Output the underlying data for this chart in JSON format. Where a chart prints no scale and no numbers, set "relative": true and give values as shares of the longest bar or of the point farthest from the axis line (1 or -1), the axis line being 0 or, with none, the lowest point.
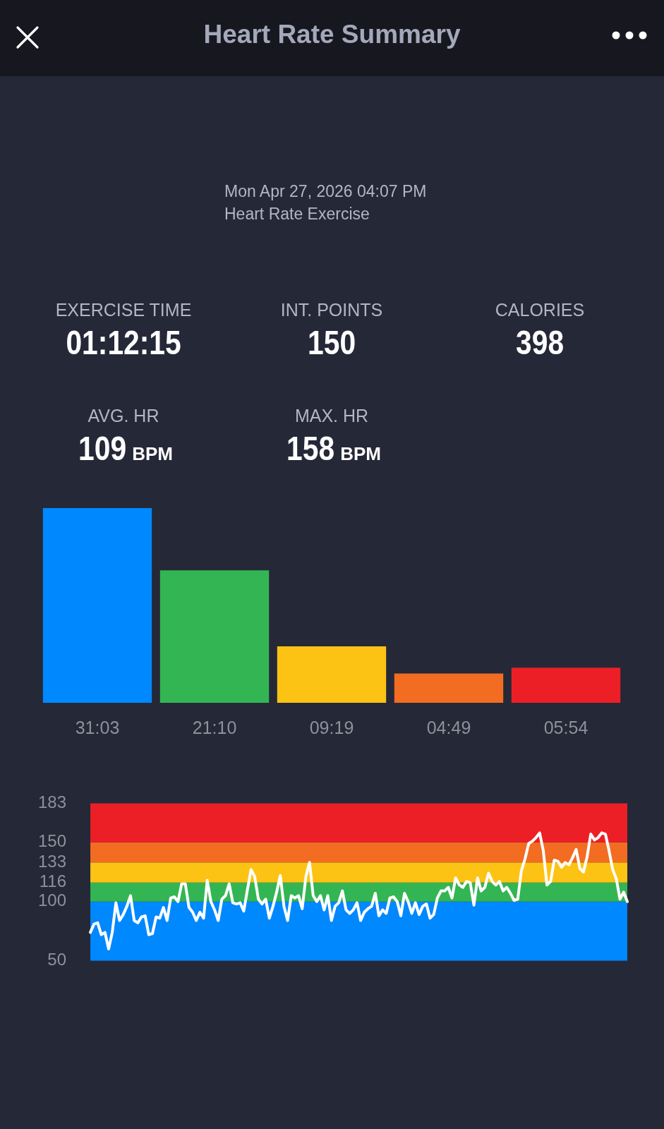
{
  "chart_data": [
    {
      "type": "other",
      "title": "Heart Rate Summary",
      "subtitle": "Mon Apr 27, 2026 04:07 PM",
      "annotations": [
        "Heart Rate Exercise",
        "EXERCISE TIME",
        "01:12:15",
        "INT. POINTS",
        "150",
        "CALORIES",
        "398",
        "AVG. HR",
        "109 BPM",
        "MAX. HR",
        "158 BPM"
      ]
    },
    {
      "type": "bar",
      "relative": true,
      "categories": [
        "31:03",
        "21:10",
        "09:19",
        "04:49",
        "05:54"
      ],
      "values": [
        1,
        0.68,
        0.29,
        0.15,
        0.18
      ],
      "colors": [
        "#0088fe",
        "#33b553",
        "#fdc314",
        "#f26c22",
        "#ed1f26"
      ]
    },
    {
      "type": "line",
      "ylim": [
        50,
        183
      ],
      "yticks": [
        50,
        100,
        116,
        133,
        150,
        183
      ],
      "tick_labels": "y",
      "marker": "none",
      "categories": [
        null,
        null,
        null,
        null,
        null,
        null,
        null,
        null,
        null,
        null,
        null,
        null,
        null,
        null,
        null,
        null,
        null,
        null,
        null,
        null,
        null,
        null,
        null,
        null,
        null,
        null,
        null,
        null,
        null,
        null,
        null,
        null,
        null,
        null,
        null,
        null,
        null,
        null,
        null,
        null,
        null,
        null,
        null,
        null,
        null,
        null,
        null,
        null,
        null,
        null,
        null,
        null,
        null,
        null,
        null,
        null,
        null,
        null,
        null,
        null,
        null,
        null,
        null,
        null,
        null,
        null,
        null,
        null,
        null,
        null,
        null,
        null,
        null,
        null,
        null,
        null,
        null,
        null,
        null,
        null,
        null,
        null,
        null,
        null,
        null,
        null,
        null,
        null,
        null,
        null,
        null,
        null,
        null,
        null,
        null,
        null,
        null,
        null,
        null,
        null,
        null,
        null,
        null,
        null,
        null,
        null,
        null,
        null,
        null,
        null,
        null,
        null,
        null,
        null,
        null,
        null,
        null,
        null,
        null,
        null,
        null,
        null,
        null,
        null,
        null,
        null,
        null,
        null,
        null,
        null,
        null,
        null,
        null,
        null,
        null,
        null,
        null,
        null,
        null,
        null,
        null,
        null,
        null,
        null,
        null,
        null,
        null,
        null
      ],
      "series": [
        {
          "color": "#ffffff",
          "values": [
            74,
            81,
            82,
            72,
            74,
            60,
            74,
            99,
            84,
            89,
            96,
            105,
            84,
            82,
            87,
            88,
            72,
            73,
            87,
            86,
            95,
            84,
            103,
            104,
            100,
            115,
            115,
            95,
            91,
            84,
            91,
            86,
            118,
            100,
            93,
            84,
            102,
            105,
            115,
            99,
            98,
            99,
            92,
            110,
            127,
            121,
            102,
            98,
            102,
            86,
            96,
            108,
            122,
            96,
            84,
            105,
            103,
            105,
            94,
            121,
            133,
            105,
            100,
            105,
            93,
            105,
            84,
            96,
            99,
            109,
            93,
            90,
            93,
            99,
            84,
            91,
            94,
            96,
            107,
            88,
            93,
            90,
            103,
            104,
            100,
            88,
            107,
            100,
            90,
            99,
            89,
            96,
            98,
            86,
            89,
            103,
            109,
            109,
            112,
            103,
            120,
            114,
            112,
            117,
            116,
            97,
            120,
            109,
            112,
            124,
            117,
            114,
            117,
            109,
            112,
            107,
            101,
            102,
            126,
            136,
            149,
            151,
            154,
            158,
            143,
            114,
            117,
            135,
            134,
            129,
            133,
            131,
            137,
            144,
            128,
            125,
            138,
            157,
            152,
            154,
            158,
            157,
            143,
            127,
            119,
            102,
            108,
            100
          ]
        }
      ],
      "bands": [
        {
          "axis": "y",
          "from": 50,
          "to": 100,
          "color": "#0088fe"
        },
        {
          "axis": "y",
          "from": 100,
          "to": 116,
          "color": "#33b553"
        },
        {
          "axis": "y",
          "from": 116,
          "to": 133,
          "color": "#fdc314"
        },
        {
          "axis": "y",
          "from": 133,
          "to": 150,
          "color": "#f26c22"
        },
        {
          "axis": "y",
          "from": 150,
          "to": 183,
          "color": "#ed1f26"
        }
      ]
    }
  ]
}
